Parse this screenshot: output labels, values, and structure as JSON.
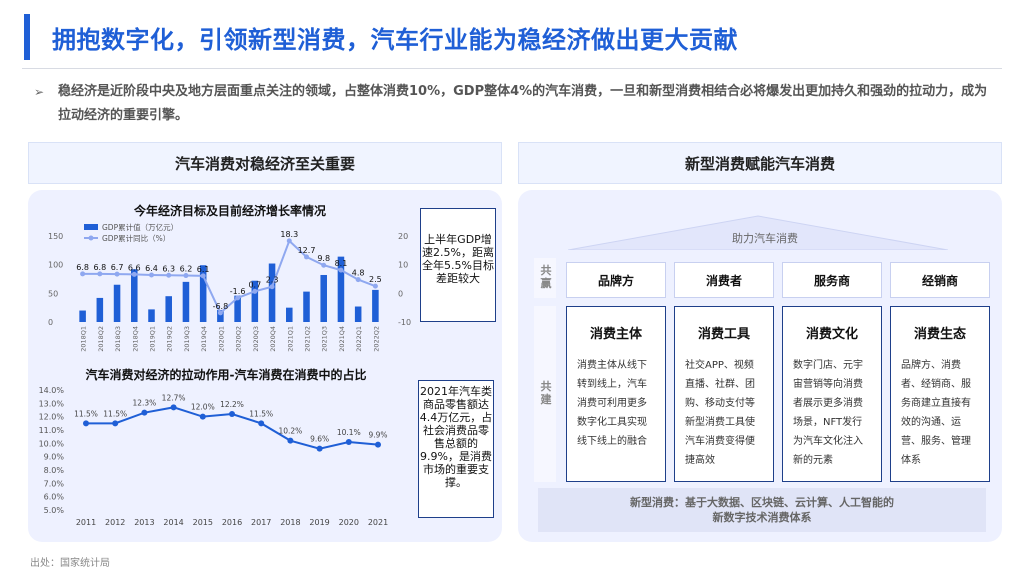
{
  "header": {
    "title": "拥抱数字化，引领新型消费，汽车行业能为稳经济做出更大贡献",
    "accent_color": "#1f5fd6"
  },
  "summary": {
    "bullet": "➢",
    "text": "稳经济是近阶段中央及地方层面重点关注的领域，占整体消费10%，GDP整体4%的汽车消费，一旦和新型消费相结合必将爆发出更加持久和强劲的拉动力，成为拉动经济的重要引擎。"
  },
  "left_panel": {
    "heading": "汽车消费对稳经济至关重要",
    "callout1": "上半年GDP增速2.5%，距离全年5.5%目标差距较大",
    "callout2": "2021年汽车类商品零售额达4.4万亿元，占社会消费品零售总额的9.9%，是消费市场的重要支撑。"
  },
  "right_panel": {
    "heading": "新型消费赋能汽车消费",
    "roof_label": "助力汽车消费",
    "side_label_1": "共赢",
    "side_label_2": "共建",
    "roles": [
      "品牌方",
      "消费者",
      "服务商",
      "经销商"
    ],
    "columns": [
      {
        "title": "消费主体",
        "text": "消费主体从线下转到线上，汽车消费可利用更多数字化工具实现线下线上的融合"
      },
      {
        "title": "消费工具",
        "text": "社交APP、视频直播、社群、团购、移动支付等新型消费工具使汽车消费变得便捷高效"
      },
      {
        "title": "消费文化",
        "text": "数字门店、元宇宙营销等向消费者展示更多消费场景，NFT发行为汽车文化注入新的元素"
      },
      {
        "title": "消费生态",
        "text": "品牌方、消费者、经销商、服务商建立直接有效的沟通、运营、服务、管理体系"
      }
    ],
    "foot_line1": "新型消费：基于大数据、区块链、云计算、人工智能的",
    "foot_line2": "新数字技术消费体系"
  },
  "source": "出处：国家统计局",
  "chart_data": [
    {
      "type": "bar",
      "title": "今年经济目标及目前经济增长率情况",
      "categories": [
        "2018Q1",
        "2018Q2",
        "2018Q3",
        "2018Q4",
        "2019Q1",
        "2019Q2",
        "2019Q3",
        "2019Q4",
        "2020Q1",
        "2020Q2",
        "2020Q3",
        "2020Q4",
        "2021Q1",
        "2021Q2",
        "2021Q3",
        "2021Q4",
        "2022Q1",
        "2022Q2"
      ],
      "series": [
        {
          "name": "GDP累计值（万亿元）",
          "kind": "bar",
          "axis": "left",
          "color": "#1f5fd6",
          "values": [
            20,
            42,
            65,
            92,
            22,
            45,
            70,
            99,
            21,
            46,
            72,
            102,
            25,
            53,
            82,
            114,
            27,
            56
          ]
        },
        {
          "name": "GDP累计同比（%）",
          "kind": "line",
          "axis": "right",
          "color": "#8fa8f0",
          "values": [
            6.8,
            6.8,
            6.7,
            6.6,
            6.4,
            6.3,
            6.2,
            6.1,
            -6.8,
            -1.6,
            0.7,
            2.3,
            18.3,
            12.7,
            9.8,
            8.1,
            4.8,
            2.5
          ],
          "labels": [
            "6.8",
            "6.8",
            "6.7",
            "6.6",
            "6.4",
            "6.3",
            "6.2",
            "6.1",
            "-6.8",
            "-1.6",
            "0.7",
            "2.3",
            "18.3",
            "12.7",
            "9.8",
            "8.1",
            "4.8",
            "2.5"
          ]
        }
      ],
      "ylim_left": [
        0,
        150
      ],
      "yticks_left": [
        "150",
        "100",
        "50",
        "0"
      ],
      "ylim_right": [
        -10,
        20
      ],
      "yticks_right": [
        "20",
        "10",
        "0",
        "-10"
      ],
      "legend": "top-left",
      "grid": false
    },
    {
      "type": "line",
      "title": "汽车消费对经济的拉动作用-汽车消费在消费中的占比",
      "x": [
        "2011",
        "2012",
        "2013",
        "2014",
        "2015",
        "2016",
        "2017",
        "2018",
        "2019",
        "2020",
        "2021"
      ],
      "series": [
        {
          "values": [
            11.5,
            11.5,
            12.3,
            12.7,
            12.0,
            12.2,
            11.5,
            10.2,
            9.6,
            10.1,
            9.9
          ],
          "labels": [
            "11.5%",
            "11.5%",
            "12.3%",
            "12.7%",
            "12.0%",
            "12.2%",
            "11.5%",
            "10.2%",
            "9.6%",
            "10.1%",
            "9.9%"
          ],
          "color": "#1f5fd6"
        }
      ],
      "ylim": [
        5.0,
        14.0
      ],
      "yticks": [
        "14.0%",
        "13.0%",
        "12.0%",
        "11.0%",
        "10.0%",
        "9.0%",
        "8.0%",
        "7.0%",
        "6.0%",
        "5.0%"
      ],
      "grid": false
    }
  ]
}
